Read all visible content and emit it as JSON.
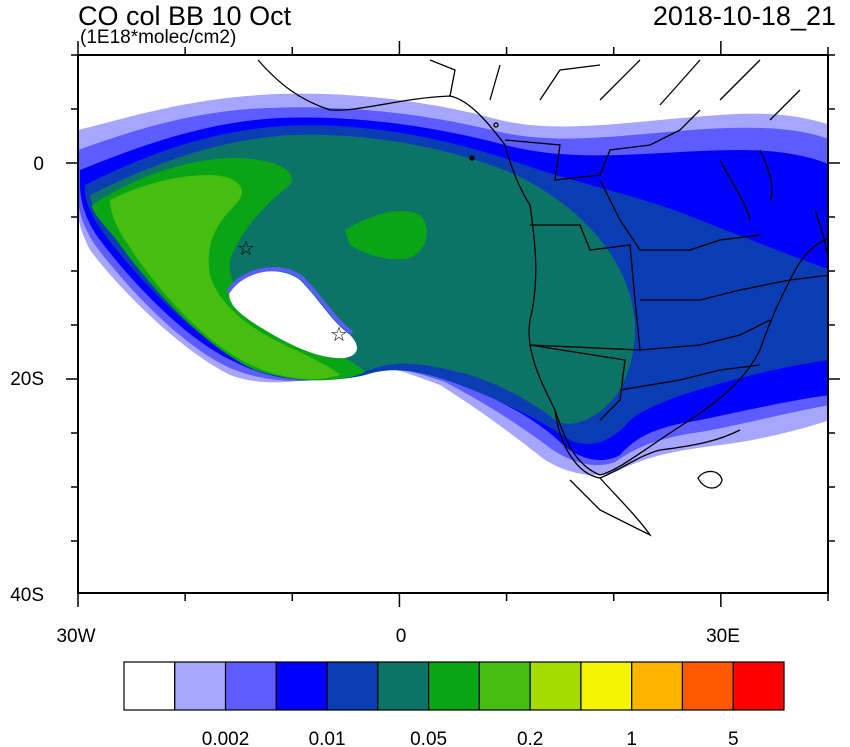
{
  "title": "CO col BB 10 Oct",
  "subtitle": "(1E18*molec/cm2)",
  "timestamp": "2018-10-18_21",
  "axes": {
    "y_labels": [
      "0",
      "20S",
      "40S"
    ],
    "x_labels": [
      "30W",
      "0",
      "30E"
    ]
  },
  "colorbar": {
    "colors": [
      "#ffffff",
      "#a6a6ff",
      "#5c5cff",
      "#0000ff",
      "#0a3cb4",
      "#0c7367",
      "#0aa515",
      "#46be10",
      "#a5dc00",
      "#f5f500",
      "#ffb400",
      "#ff5a00",
      "#ff0000"
    ],
    "labels": [
      "0.002",
      "0.01",
      "0.05",
      "0.2",
      "1",
      "5"
    ]
  },
  "markers": [
    {
      "name": "star-marker-1",
      "symbol": "☆"
    },
    {
      "name": "star-marker-2",
      "symbol": "☆"
    }
  ]
}
